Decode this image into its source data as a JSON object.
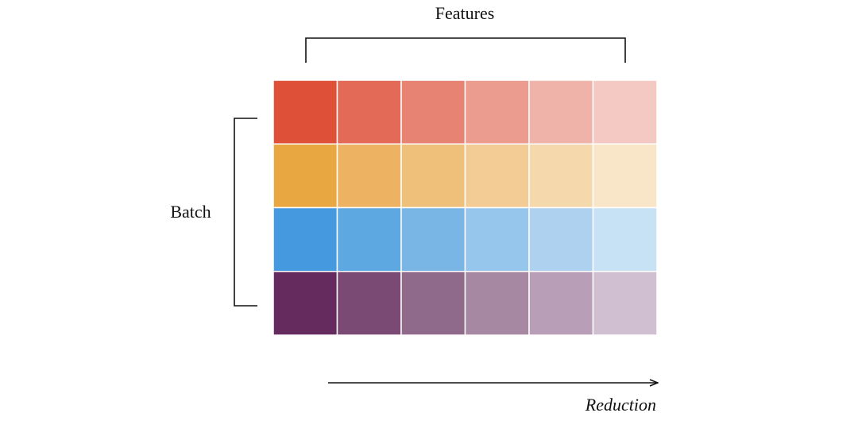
{
  "labels": {
    "features": "Features",
    "batch": "Batch",
    "reduction": "Reduction"
  }
}
